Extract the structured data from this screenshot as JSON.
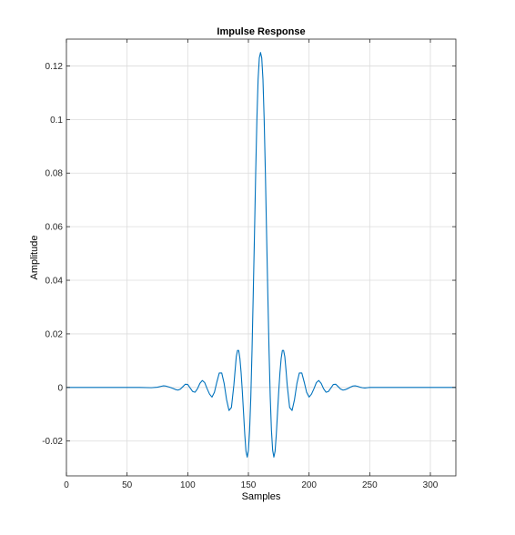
{
  "chart_data": {
    "type": "line",
    "title": "Impulse Response",
    "xlabel": "Samples",
    "ylabel": "Amplitude",
    "xlim": [
      0,
      321
    ],
    "ylim": [
      -0.033,
      0.13
    ],
    "grid": true,
    "xticks": [
      0,
      50,
      100,
      150,
      200,
      250,
      300
    ],
    "xtick_labels": [
      "0",
      "50",
      "100",
      "150",
      "200",
      "250",
      "300"
    ],
    "yticks": [
      -0.02,
      0,
      0.02,
      0.04,
      0.06,
      0.08,
      0.1,
      0.12
    ],
    "ytick_labels": [
      "-0.02",
      "0",
      "0.02",
      "0.04",
      "0.06",
      "0.08",
      "0.1",
      "0.12"
    ],
    "series": [
      {
        "color": "#0072bd",
        "x": [
          0,
          40,
          60,
          70,
          75,
          78,
          80,
          82,
          85,
          88,
          90,
          92,
          94,
          96,
          98,
          100,
          102,
          104,
          106,
          108,
          110,
          112,
          114,
          116,
          118,
          120,
          122,
          124,
          126,
          128,
          130,
          132,
          134,
          136,
          138,
          140,
          141,
          142,
          143,
          144,
          145,
          146,
          147,
          148,
          149,
          150,
          151,
          152,
          153,
          154,
          155,
          156,
          157,
          158,
          159,
          160,
          161,
          162,
          163,
          164,
          165,
          166,
          167,
          168,
          169,
          170,
          171,
          172,
          173,
          174,
          175,
          176,
          177,
          178,
          179,
          180,
          181,
          182,
          184,
          186,
          188,
          190,
          192,
          194,
          196,
          198,
          200,
          202,
          204,
          206,
          208,
          210,
          212,
          214,
          216,
          218,
          220,
          222,
          224,
          226,
          228,
          230,
          232,
          234,
          236,
          238,
          240,
          242,
          244,
          246,
          248,
          250,
          255,
          260,
          270,
          290,
          321
        ],
        "y": [
          0,
          0,
          0,
          -0.0001,
          0.0001,
          0.0004,
          0.0006,
          0.0005,
          0.0001,
          -0.0004,
          -0.0008,
          -0.001,
          -0.0006,
          0.0003,
          0.0012,
          0.0011,
          -0.0002,
          -0.0015,
          -0.0018,
          -0.0005,
          0.0015,
          0.0026,
          0.0018,
          -0.0005,
          -0.0025,
          -0.0036,
          -0.0018,
          0.002,
          0.0054,
          0.0054,
          0.0015,
          -0.0045,
          -0.0086,
          -0.0075,
          0.0008,
          0.0115,
          0.0138,
          0.0138,
          0.0108,
          0.0055,
          -0.0015,
          -0.0095,
          -0.0175,
          -0.0238,
          -0.026,
          -0.0235,
          -0.016,
          -0.0035,
          0.014,
          0.035,
          0.057,
          0.08,
          0.1,
          0.115,
          0.123,
          0.125,
          0.123,
          0.115,
          0.1,
          0.08,
          0.057,
          0.035,
          0.014,
          -0.0035,
          -0.016,
          -0.0235,
          -0.026,
          -0.0238,
          -0.0175,
          -0.0095,
          -0.0015,
          0.0055,
          0.0108,
          0.0138,
          0.0138,
          0.0115,
          0.0065,
          0.0008,
          -0.0075,
          -0.0086,
          -0.0045,
          0.0015,
          0.0054,
          0.0054,
          0.002,
          -0.0018,
          -0.0036,
          -0.0025,
          -0.0005,
          0.0018,
          0.0026,
          0.0015,
          -0.0005,
          -0.0018,
          -0.0015,
          -0.0002,
          0.0011,
          0.0012,
          0.0003,
          -0.0006,
          -0.001,
          -0.0008,
          -0.0004,
          0.0001,
          0.0005,
          0.0006,
          0.0004,
          0.0001,
          -0.0001,
          -0.0002,
          -0.0001,
          0,
          0,
          0,
          0,
          0,
          0
        ]
      }
    ]
  }
}
